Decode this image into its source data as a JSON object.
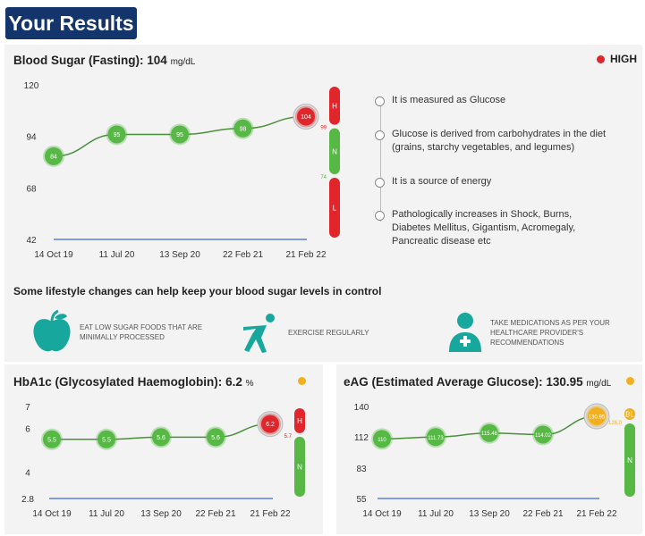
{
  "header": {
    "title": "Your Results"
  },
  "blood_sugar": {
    "title": "Blood Sugar (Fasting):",
    "value": "104",
    "unit": "mg/dL",
    "status": "HIGH",
    "status_color": "#e0262b",
    "facts": [
      "It is measured as Glucose",
      "Glucose is derived from carbohydrates in the diet (grains, starchy vegetables, and legumes)",
      "It is a source of energy",
      "Pathologically increases in Shock, Burns, Diabetes Mellitus, Gigantism, Acromegaly, Pancreatic disease etc"
    ]
  },
  "lifestyle": {
    "heading": "Some lifestyle changes can help keep your blood sugar levels in control",
    "tips": [
      {
        "icon": "apple-icon",
        "text": "Eat low sugar foods that are minimally processed"
      },
      {
        "icon": "exercise-icon",
        "text": "Exercise regularly"
      },
      {
        "icon": "doctor-icon",
        "text": "Take medications as per your healthcare provider's recommendations"
      }
    ]
  },
  "hba1c": {
    "title": "HbA1c (Glycosylated Haemoglobin):",
    "value": "6.2",
    "unit": "%",
    "status_color": "#f2b01e"
  },
  "eag": {
    "title": "eAG (Estimated Average Glucose):",
    "value": "130.95",
    "unit": "mg/dL",
    "status_color": "#f2b01e"
  },
  "colors": {
    "normal": "#57b846",
    "high": "#e0262b",
    "borderline": "#f2b01e",
    "baseline": "#5b7fd6",
    "line": "#4a8f3a"
  },
  "chart_data": [
    {
      "id": "blood-sugar",
      "type": "line",
      "categories": [
        "14 Oct 19",
        "11 Jul 20",
        "13 Sep 20",
        "22 Feb 21",
        "21 Feb 22"
      ],
      "values": [
        84,
        95,
        95,
        98,
        104
      ],
      "point_labels": [
        "84",
        "95",
        "95",
        "98",
        "104"
      ],
      "point_status": [
        "normal",
        "normal",
        "normal",
        "normal",
        "high"
      ],
      "yticks": [
        42,
        68,
        94,
        120
      ],
      "ylim": [
        42,
        120
      ],
      "ranges": [
        {
          "label": "H",
          "from": 99,
          "to": 120,
          "status": "high"
        },
        {
          "label": "N",
          "from": 74,
          "to": 99,
          "status": "normal"
        },
        {
          "label": "L",
          "from": 42,
          "to": 74,
          "status": "high"
        }
      ],
      "range_ticks": [
        {
          "value": 99,
          "label": "99",
          "status": "high"
        },
        {
          "value": 74,
          "label": "74",
          "status": "normal"
        }
      ]
    },
    {
      "id": "hba1c",
      "type": "line",
      "categories": [
        "14 Oct 19",
        "11 Jul 20",
        "13 Sep 20",
        "22 Feb 21",
        "21 Feb 22"
      ],
      "values": [
        5.5,
        5.5,
        5.6,
        5.6,
        6.2
      ],
      "point_labels": [
        "5.5",
        "5.5",
        "5.6",
        "5.6",
        "6.2"
      ],
      "point_status": [
        "normal",
        "normal",
        "normal",
        "normal",
        "high"
      ],
      "yticks": [
        2.8,
        4,
        6,
        7
      ],
      "ylim": [
        2.8,
        7
      ],
      "ranges": [
        {
          "label": "H",
          "from": 5.7,
          "to": 7,
          "status": "high"
        },
        {
          "label": "N",
          "from": 2.8,
          "to": 5.7,
          "status": "normal"
        }
      ],
      "range_ticks": [
        {
          "value": 5.7,
          "label": "5.7",
          "status": "high"
        }
      ]
    },
    {
      "id": "eag",
      "type": "line",
      "categories": [
        "14 Oct 19",
        "11 Jul 20",
        "13 Sep 20",
        "22 Feb 21",
        "21 Feb 22"
      ],
      "values": [
        110,
        111.73,
        115.46,
        114.02,
        130.95
      ],
      "point_labels": [
        "110",
        "111.73",
        "115.46",
        "114.02",
        "130.95"
      ],
      "point_status": [
        "normal",
        "normal",
        "normal",
        "normal",
        "borderline"
      ],
      "yticks": [
        55,
        83,
        112,
        140
      ],
      "ylim": [
        55,
        140
      ],
      "ranges": [
        {
          "label": "BL",
          "from": 126.0,
          "to": 140,
          "status": "borderline"
        },
        {
          "label": "N",
          "from": 55,
          "to": 126.0,
          "status": "normal"
        }
      ],
      "range_ticks": [
        {
          "value": 126,
          "label": "126.0",
          "status": "borderline"
        }
      ]
    }
  ]
}
